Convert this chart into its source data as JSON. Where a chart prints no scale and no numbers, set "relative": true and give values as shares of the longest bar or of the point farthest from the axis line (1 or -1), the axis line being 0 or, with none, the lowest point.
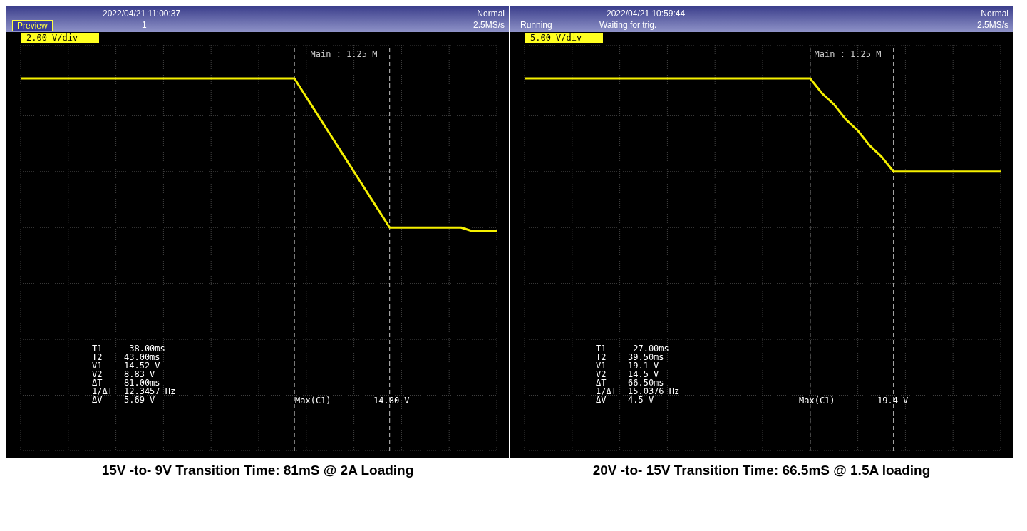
{
  "chart_data": [
    {
      "type": "line",
      "title": "15V -to- 9V Transition Time: 81mS @ 2A Loading",
      "relative": true,
      "grid": true,
      "line_style": "solid",
      "annotations": [
        "2022/04/21 11:00:37",
        "Preview",
        "1",
        "Normal",
        "2.5MS/s",
        "2.00 V/div",
        "Main : 1.25 M",
        "T1 -38.00ms",
        "T2 43.00ms",
        "V1 14.52 V",
        "V2 8.83 V",
        "ΔT 81.00ms",
        "1/ΔT 12.3457 Hz",
        "ΔV 5.69 V",
        "Max(C1) 14.80 V"
      ],
      "categories": [
        null,
        null,
        null,
        null,
        null,
        null,
        null,
        null,
        null,
        null,
        null,
        null,
        null,
        null,
        null,
        null,
        null,
        null,
        null,
        null,
        null,
        null,
        null,
        null,
        null,
        null,
        null,
        null,
        null,
        null,
        null,
        null,
        null,
        null,
        null,
        null,
        null,
        null,
        null,
        null,
        null
      ],
      "series": [
        {
          "color": "#f5f000",
          "values": [
            1,
            1,
            1,
            1,
            1,
            1,
            1,
            1,
            1,
            1,
            1,
            1,
            1,
            1,
            1,
            1,
            1,
            1,
            1,
            1,
            1,
            1,
            1,
            1,
            0.95,
            0.9,
            0.85,
            0.8,
            0.75,
            0.7,
            0.65,
            0.6,
            0.6,
            0.6,
            0.6,
            0.6,
            0.6,
            0.6,
            0.59,
            0.59,
            0.59
          ]
        }
      ]
    },
    {
      "type": "line",
      "title": "20V -to- 15V Transition Time: 66.5mS @ 1.5A loading",
      "relative": true,
      "grid": true,
      "line_style": "solid",
      "annotations": [
        "2022/04/21 10:59:44",
        "Running",
        "Waiting for trig.",
        "Normal",
        "2.5MS/s",
        "5.00 V/div",
        "Main : 1.25 M",
        "T1 -27.00ms",
        "T2 39.50ms",
        "V1 19.1 V",
        "V2 14.5 V",
        "ΔT 66.50ms",
        "1/ΔT 15.0376 Hz",
        "ΔV 4.5 V",
        "Max(C1) 19.4 V"
      ],
      "categories": [
        null,
        null,
        null,
        null,
        null,
        null,
        null,
        null,
        null,
        null,
        null,
        null,
        null,
        null,
        null,
        null,
        null,
        null,
        null,
        null,
        null,
        null,
        null,
        null,
        null,
        null,
        null,
        null,
        null,
        null,
        null,
        null,
        null,
        null,
        null,
        null,
        null,
        null,
        null,
        null,
        null
      ],
      "series": [
        {
          "color": "#f5f000",
          "values": [
            1,
            1,
            1,
            1,
            1,
            1,
            1,
            1,
            1,
            1,
            1,
            1,
            1,
            1,
            1,
            1,
            1,
            1,
            1,
            1,
            1,
            1,
            1,
            1,
            1,
            0.96,
            0.93,
            0.89,
            0.86,
            0.82,
            0.79,
            0.75,
            0.75,
            0.75,
            0.75,
            0.75,
            0.75,
            0.75,
            0.75,
            0.75,
            0.75
          ]
        }
      ]
    }
  ]
}
